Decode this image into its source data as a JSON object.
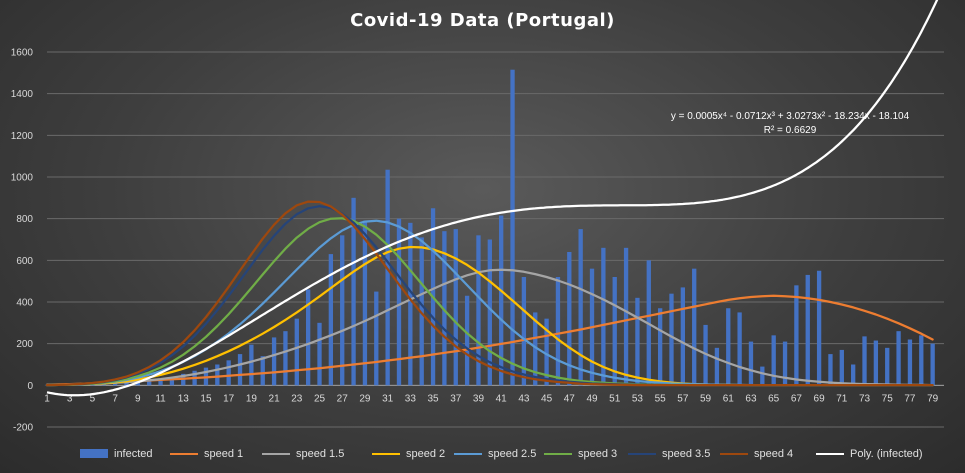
{
  "chart_data": {
    "type": "bar",
    "title": "Covid-19  Data  (Portugal)",
    "xlabel": "",
    "ylabel": "",
    "ylim": [
      -200,
      1600
    ],
    "yticks": [
      -200,
      0,
      200,
      400,
      600,
      800,
      1000,
      1200,
      1400,
      1600
    ],
    "xlim": [
      1,
      80
    ],
    "xtick_labels": [
      1,
      3,
      5,
      7,
      9,
      11,
      13,
      15,
      17,
      19,
      21,
      23,
      25,
      27,
      29,
      31,
      33,
      35,
      37,
      39,
      41,
      43,
      45,
      47,
      49,
      51,
      53,
      55,
      57,
      59,
      61,
      63,
      65,
      67,
      69,
      71,
      73,
      75,
      77,
      79
    ],
    "grid": true,
    "legend_position": "bottom",
    "x": [
      1,
      2,
      3,
      4,
      5,
      6,
      7,
      8,
      9,
      10,
      11,
      12,
      13,
      14,
      15,
      16,
      17,
      18,
      19,
      20,
      21,
      22,
      23,
      24,
      25,
      26,
      27,
      28,
      29,
      30,
      31,
      32,
      33,
      34,
      35,
      36,
      37,
      38,
      39,
      40,
      41,
      42,
      43,
      44,
      45,
      46,
      47,
      48,
      49,
      50,
      51,
      52,
      53,
      54,
      55,
      56,
      57,
      58,
      59,
      60,
      61,
      62,
      63,
      64,
      65,
      66,
      67,
      68,
      69,
      70,
      71,
      72,
      73,
      74,
      75,
      76,
      77,
      78,
      79
    ],
    "series": [
      {
        "name": "infected",
        "kind": "bar",
        "color": "#4472c4",
        "values": [
          2,
          2,
          3,
          5,
          6,
          8,
          10,
          15,
          20,
          25,
          30,
          40,
          55,
          70,
          85,
          100,
          120,
          150,
          195,
          140,
          230,
          260,
          320,
          460,
          300,
          630,
          720,
          900,
          790,
          450,
          1035,
          800,
          780,
          710,
          850,
          740,
          750,
          430,
          720,
          700,
          815,
          1515,
          520,
          350,
          320,
          520,
          640,
          750,
          560,
          660,
          520,
          660,
          420,
          600,
          370,
          440,
          470,
          560,
          290,
          180,
          370,
          350,
          210,
          90,
          240,
          210,
          480,
          530,
          550,
          150,
          170,
          100,
          235,
          215,
          180,
          260,
          220,
          240,
          200
        ]
      },
      {
        "name": "speed 1",
        "kind": "line",
        "color": "#ed7d31",
        "values": [
          3,
          5,
          6,
          8,
          10,
          12,
          14,
          17,
          20,
          23,
          26,
          29,
          32,
          35,
          38,
          42,
          46,
          50,
          54,
          58,
          62,
          67,
          72,
          77,
          82,
          88,
          94,
          100,
          106,
          112,
          119,
          126,
          133,
          140,
          148,
          156,
          164,
          172,
          181,
          190,
          199,
          208,
          218,
          228,
          238,
          248,
          258,
          268,
          279,
          290,
          301,
          312,
          323,
          334,
          345,
          356,
          367,
          378,
          389,
          400,
          410,
          418,
          424,
          428,
          430,
          428,
          424,
          418,
          410,
          400,
          388,
          374,
          358,
          340,
          320,
          298,
          274,
          248,
          220
        ]
      },
      {
        "name": "speed 1.5",
        "kind": "line",
        "color": "#a5a5a5",
        "values": [
          2,
          3,
          4,
          5,
          7,
          9,
          12,
          15,
          19,
          24,
          30,
          37,
          45,
          54,
          64,
          75,
          87,
          100,
          114,
          129,
          145,
          162,
          180,
          199,
          219,
          240,
          262,
          285,
          309,
          334,
          360,
          386,
          412,
          438,
          463,
          487,
          509,
          528,
          543,
          552,
          555,
          552,
          545,
          534,
          520,
          503,
          484,
          462,
          438,
          412,
          384,
          355,
          325,
          295,
          264,
          234,
          205,
          177,
          151,
          128,
          107,
          88,
          72,
          58,
          46,
          36,
          28,
          22,
          17,
          13,
          10,
          8,
          6,
          5,
          4,
          3,
          2,
          2,
          1
        ]
      },
      {
        "name": "speed 2",
        "kind": "line",
        "color": "#ffc000",
        "values": [
          1,
          2,
          3,
          5,
          7,
          10,
          14,
          20,
          28,
          38,
          50,
          64,
          80,
          98,
          118,
          140,
          164,
          190,
          218,
          248,
          280,
          314,
          350,
          388,
          427,
          467,
          507,
          546,
          582,
          614,
          639,
          656,
          664,
          662,
          652,
          634,
          609,
          578,
          541,
          499,
          454,
          407,
          359,
          311,
          265,
          221,
          181,
          145,
          114,
          88,
          67,
          50,
          37,
          27,
          19,
          13,
          9,
          6,
          4,
          3,
          2,
          1,
          1,
          1,
          1,
          1,
          1,
          1,
          1,
          1,
          1,
          1,
          1,
          1,
          1,
          1,
          1,
          1,
          1
        ]
      },
      {
        "name": "speed 2.5",
        "kind": "line",
        "color": "#5b9bd5",
        "values": [
          1,
          2,
          3,
          5,
          8,
          12,
          18,
          26,
          37,
          51,
          68,
          89,
          113,
          141,
          173,
          209,
          249,
          293,
          341,
          392,
          446,
          501,
          556,
          610,
          661,
          706,
          743,
          770,
          786,
          790,
          782,
          762,
          732,
          693,
          646,
          594,
          538,
          481,
          424,
          368,
          315,
          266,
          222,
          183,
          149,
          120,
          96,
          76,
          60,
          47,
          36,
          28,
          21,
          16,
          12,
          9,
          7,
          5,
          4,
          3,
          2,
          2,
          1,
          1,
          1,
          1,
          1,
          1,
          1,
          1,
          1,
          1,
          1,
          1,
          1,
          1,
          1,
          1,
          1
        ]
      },
      {
        "name": "speed 3",
        "kind": "line",
        "color": "#70ad47",
        "values": [
          1,
          2,
          3,
          5,
          8,
          13,
          20,
          30,
          44,
          62,
          85,
          113,
          147,
          187,
          233,
          285,
          342,
          403,
          467,
          532,
          596,
          656,
          709,
          752,
          783,
          800,
          802,
          789,
          762,
          723,
          673,
          615,
          552,
          487,
          422,
          360,
          302,
          250,
          204,
          164,
          131,
          104,
          81,
          63,
          49,
          37,
          28,
          21,
          16,
          12,
          9,
          7,
          5,
          4,
          3,
          2,
          2,
          1,
          1,
          1,
          1,
          1,
          1,
          1,
          1,
          1,
          1,
          1,
          1,
          1,
          1,
          1,
          1,
          1,
          1,
          1,
          1,
          1,
          1
        ]
      },
      {
        "name": "speed 3.5",
        "kind": "line",
        "color": "#264478",
        "values": [
          1,
          2,
          4,
          6,
          10,
          16,
          25,
          38,
          56,
          79,
          108,
          144,
          187,
          238,
          296,
          360,
          430,
          503,
          578,
          651,
          718,
          776,
          821,
          850,
          860,
          851,
          824,
          781,
          726,
          662,
          593,
          522,
          452,
          386,
          324,
          268,
          219,
          177,
          141,
          111,
          87,
          67,
          52,
          40,
          30,
          23,
          17,
          13,
          9,
          7,
          5,
          4,
          3,
          2,
          2,
          1,
          1,
          1,
          1,
          1,
          1,
          1,
          1,
          1,
          1,
          1,
          1,
          1,
          1,
          1,
          1,
          1,
          1,
          1,
          1,
          1,
          1,
          1,
          1
        ]
      },
      {
        "name": "speed 4",
        "kind": "line",
        "color": "#9e480e",
        "values": [
          1,
          2,
          4,
          7,
          11,
          18,
          28,
          42,
          62,
          88,
          120,
          160,
          208,
          264,
          328,
          398,
          473,
          551,
          629,
          704,
          771,
          826,
          864,
          882,
          880,
          858,
          819,
          766,
          702,
          632,
          558,
          484,
          413,
          346,
          286,
          233,
          187,
          148,
          116,
          90,
          69,
          52,
          39,
          29,
          22,
          16,
          12,
          8,
          6,
          4,
          3,
          2,
          1,
          1,
          1,
          1,
          1,
          1,
          1,
          1,
          1,
          1,
          1,
          1,
          1,
          1,
          1,
          1,
          1,
          1,
          1,
          1,
          1,
          1,
          1,
          1,
          1,
          1,
          1
        ]
      },
      {
        "name": "Poly. (infected)",
        "kind": "poly",
        "color": "#ffffff",
        "coefficients": [
          0.0005,
          -0.0712,
          3.0273,
          -18.234,
          -18.104
        ]
      }
    ],
    "trendline_label": {
      "equation": "y = 0.0005x⁴ - 0.0712x³ + 3.0273x² - 18.234x - 18.104",
      "r_squared": "R² = 0.6629"
    }
  }
}
